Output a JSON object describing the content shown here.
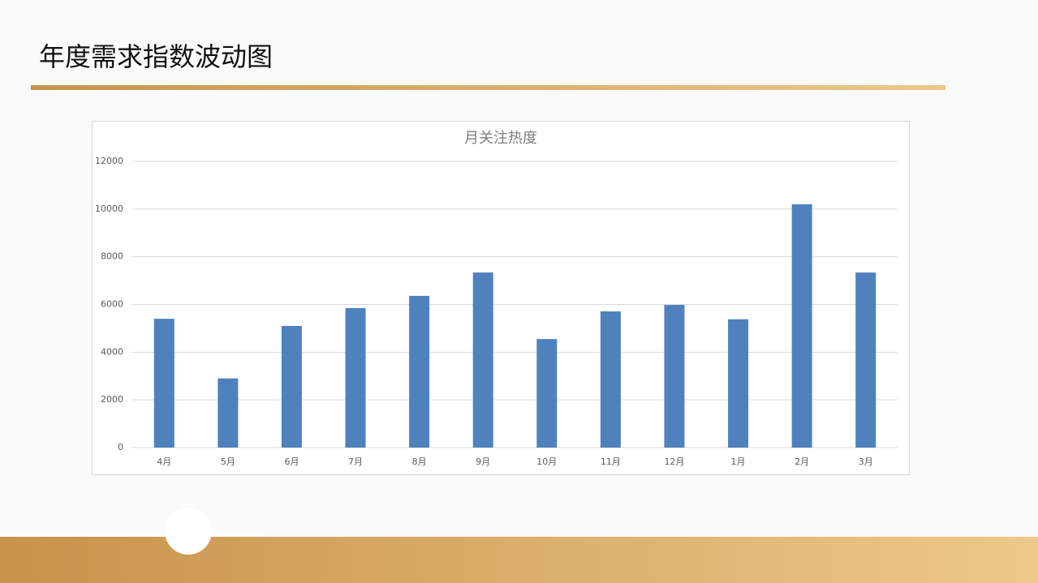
{
  "slide_title": "年度需求指数波动图",
  "chart_data": {
    "type": "bar",
    "title": "月关注热度",
    "categories": [
      "4月",
      "5月",
      "6月",
      "7月",
      "8月",
      "9月",
      "10月",
      "11月",
      "12月",
      "1月",
      "2月",
      "3月"
    ],
    "values": [
      5400,
      2900,
      5100,
      5850,
      6360,
      7340,
      4550,
      5710,
      5980,
      5380,
      10200,
      7340
    ],
    "color": "#4f81bd",
    "ylim": [
      0,
      12000
    ],
    "yticks": [
      0,
      2000,
      4000,
      6000,
      8000,
      10000,
      12000
    ],
    "grid": true
  }
}
